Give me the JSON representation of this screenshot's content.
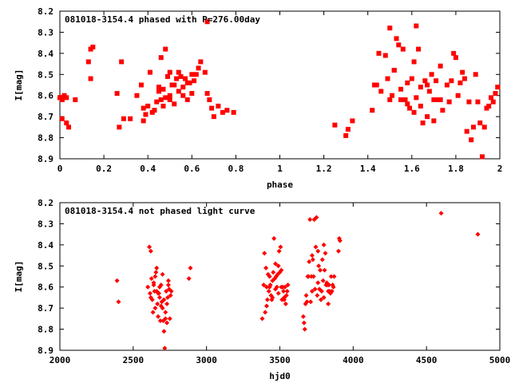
{
  "chart_data": [
    {
      "type": "scatter",
      "title": "081018-3154.4 phased with P=276.00day",
      "xlabel": "phase",
      "ylabel": "I[mag]",
      "xlim": [
        0,
        2
      ],
      "ylim": [
        8.2,
        8.9
      ],
      "y_inverted": true,
      "grid": false,
      "xticks": [
        "0",
        "0.2",
        "0.4",
        "0.6",
        "0.8",
        "1",
        "1.2",
        "1.4",
        "1.6",
        "1.8",
        "2"
      ],
      "xtick_values": [
        0,
        0.2,
        0.4,
        0.6,
        0.8,
        1,
        1.2,
        1.4,
        1.6,
        1.8,
        2
      ],
      "yticks": [
        "8.2",
        "8.3",
        "8.4",
        "8.5",
        "8.6",
        "8.7",
        "8.8",
        "8.9"
      ],
      "ytick_values": [
        8.2,
        8.3,
        8.4,
        8.5,
        8.6,
        8.7,
        8.8,
        8.9
      ],
      "marker": "filled-square",
      "color": "#ff0000",
      "series": [
        {
          "x": [
            0.0,
            0.01,
            0.02,
            0.03,
            0.01,
            0.03,
            0.07,
            0.13,
            0.14,
            0.15,
            0.14,
            0.26,
            0.27,
            0.28,
            0.29,
            0.32,
            0.35,
            0.37,
            0.38,
            0.39,
            0.4,
            0.41,
            0.43,
            0.45,
            0.46,
            0.47,
            0.48,
            0.49,
            0.5,
            0.5,
            0.51,
            0.52,
            0.53,
            0.54,
            0.55,
            0.56,
            0.57,
            0.58,
            0.59,
            0.6,
            0.61,
            0.62,
            0.63,
            0.64,
            0.66,
            0.67,
            0.68,
            0.69,
            0.7,
            0.72,
            0.74,
            0.76,
            0.79,
            0.45,
            0.46,
            0.47,
            0.48,
            0.52,
            0.54,
            0.56,
            0.58,
            0.6,
            0.38,
            0.42,
            0.44,
            0.5,
            0.67,
            0.0,
            0.01,
            0.04
          ],
          "y": [
            8.61,
            8.62,
            8.6,
            8.61,
            8.71,
            8.73,
            8.62,
            8.44,
            8.38,
            8.37,
            8.52,
            8.59,
            8.75,
            8.44,
            8.71,
            8.71,
            8.6,
            8.55,
            8.72,
            8.69,
            8.65,
            8.49,
            8.67,
            8.56,
            8.42,
            8.57,
            8.38,
            8.51,
            8.49,
            8.62,
            8.55,
            8.55,
            8.52,
            8.49,
            8.51,
            8.56,
            8.52,
            8.54,
            8.54,
            8.5,
            8.53,
            8.5,
            8.47,
            8.44,
            8.49,
            8.59,
            8.62,
            8.66,
            8.7,
            8.65,
            8.68,
            8.67,
            8.68,
            8.58,
            8.62,
            8.65,
            8.61,
            8.64,
            8.58,
            8.6,
            8.62,
            8.59,
            8.66,
            8.68,
            8.63,
            8.6,
            8.25,
            8.61,
            8.62,
            8.75
          ]
        },
        {
          "x": [
            1.25,
            1.3,
            1.31,
            1.33,
            1.42,
            1.43,
            1.44,
            1.45,
            1.46,
            1.48,
            1.49,
            1.5,
            1.5,
            1.51,
            1.52,
            1.53,
            1.54,
            1.55,
            1.56,
            1.57,
            1.58,
            1.59,
            1.6,
            1.61,
            1.62,
            1.62,
            1.63,
            1.64,
            1.65,
            1.66,
            1.67,
            1.68,
            1.69,
            1.7,
            1.71,
            1.72,
            1.73,
            1.74,
            1.76,
            1.77,
            1.78,
            1.79,
            1.8,
            1.81,
            1.82,
            1.83,
            1.84,
            1.85,
            1.86,
            1.87,
            1.88,
            1.89,
            1.9,
            1.91,
            1.92,
            1.93,
            1.94,
            1.95,
            1.96,
            1.97,
            1.98,
            1.99,
            1.52,
            1.55,
            1.58,
            1.61,
            1.64,
            1.67,
            1.7,
            1.73
          ],
          "y": [
            8.74,
            8.79,
            8.76,
            8.72,
            8.67,
            8.55,
            8.55,
            8.4,
            8.58,
            8.41,
            8.52,
            8.28,
            8.62,
            8.6,
            8.48,
            8.33,
            8.36,
            8.57,
            8.38,
            8.62,
            8.54,
            8.66,
            8.52,
            8.44,
            8.27,
            8.61,
            8.38,
            8.56,
            8.73,
            8.53,
            8.55,
            8.58,
            8.5,
            8.62,
            8.53,
            8.62,
            8.62,
            8.67,
            8.55,
            8.63,
            8.53,
            8.4,
            8.42,
            8.6,
            8.54,
            8.49,
            8.52,
            8.77,
            8.63,
            8.81,
            8.75,
            8.5,
            8.63,
            8.73,
            8.89,
            8.75,
            8.66,
            8.65,
            8.61,
            8.63,
            8.59,
            8.56,
            8.48,
            8.62,
            8.64,
            8.68,
            8.65,
            8.7,
            8.72,
            8.46
          ]
        }
      ]
    },
    {
      "type": "scatter",
      "title": "081018-3154.4 not phased light curve",
      "xlabel": "hjd0",
      "ylabel": "I[mag]",
      "xlim": [
        2000,
        5000
      ],
      "ylim": [
        8.2,
        8.9
      ],
      "y_inverted": true,
      "grid": false,
      "xticks": [
        "2000",
        "2500",
        "3000",
        "3500",
        "4000",
        "4500",
        "5000"
      ],
      "xtick_values": [
        2000,
        2500,
        3000,
        3500,
        4000,
        4500,
        5000
      ],
      "yticks": [
        "8.2",
        "8.3",
        "8.4",
        "8.5",
        "8.6",
        "8.7",
        "8.8",
        "8.9"
      ],
      "ytick_values": [
        8.2,
        8.3,
        8.4,
        8.5,
        8.6,
        8.7,
        8.8,
        8.9
      ],
      "marker": "diamond",
      "color": "#ff0000",
      "series": [
        {
          "x": [
            2390,
            2400,
            2600,
            2610,
            2615,
            2620,
            2625,
            2630,
            2635,
            2640,
            2645,
            2650,
            2655,
            2660,
            2665,
            2670,
            2675,
            2680,
            2685,
            2690,
            2695,
            2700,
            2705,
            2710,
            2715,
            2720,
            2725,
            2730,
            2735,
            2740,
            2745,
            2750,
            2755,
            2760,
            2880,
            2890,
            2620,
            2640,
            2660,
            2680,
            2700,
            2720,
            2730,
            2740,
            2650,
            2670,
            2690,
            2710
          ],
          "y": [
            8.57,
            8.67,
            8.6,
            8.41,
            8.63,
            8.43,
            8.56,
            8.66,
            8.72,
            8.59,
            8.62,
            8.55,
            8.53,
            8.51,
            8.68,
            8.74,
            8.63,
            8.65,
            8.76,
            8.59,
            8.67,
            8.7,
            8.76,
            8.81,
            8.89,
            8.75,
            8.62,
            8.77,
            8.65,
            8.59,
            8.61,
            8.75,
            8.64,
            8.62,
            8.56,
            8.51,
            8.65,
            8.58,
            8.62,
            8.6,
            8.54,
            8.72,
            8.68,
            8.57,
            8.7,
            8.63,
            8.69,
            8.66
          ]
        },
        {
          "x": [
            3380,
            3390,
            3395,
            3400,
            3405,
            3410,
            3415,
            3420,
            3425,
            3430,
            3435,
            3440,
            3445,
            3450,
            3455,
            3460,
            3465,
            3470,
            3475,
            3480,
            3485,
            3490,
            3495,
            3500,
            3505,
            3510,
            3515,
            3520,
            3525,
            3530,
            3535,
            3540,
            3545,
            3550,
            3555,
            3410,
            3430,
            3450,
            3470,
            3490,
            3510,
            3530
          ],
          "y": [
            8.75,
            8.59,
            8.44,
            8.72,
            8.51,
            8.6,
            8.66,
            8.54,
            8.62,
            8.6,
            8.59,
            8.64,
            8.66,
            8.65,
            8.53,
            8.37,
            8.56,
            8.49,
            8.55,
            8.6,
            8.54,
            8.5,
            8.43,
            8.53,
            8.41,
            8.6,
            8.66,
            8.6,
            8.62,
            8.66,
            8.6,
            8.68,
            8.64,
            8.62,
            8.59,
            8.69,
            8.55,
            8.57,
            8.61,
            8.63,
            8.52,
            8.65
          ]
        },
        {
          "x": [
            3660,
            3665,
            3670,
            3675,
            3680,
            3685,
            3690,
            3695,
            3700,
            3705,
            3710,
            3715,
            3720,
            3725,
            3730,
            3735,
            3740,
            3745,
            3750,
            3755,
            3760,
            3765,
            3770,
            3775,
            3780,
            3785,
            3790,
            3795,
            3800,
            3805,
            3810,
            3815,
            3820,
            3825,
            3830,
            3835,
            3840,
            3845,
            3850,
            3855,
            3860,
            3865,
            3870,
            3900,
            3905,
            3910,
            3720,
            3760,
            3800,
            3830
          ],
          "y": [
            8.74,
            8.77,
            8.8,
            8.68,
            8.64,
            8.67,
            8.55,
            8.55,
            8.48,
            8.28,
            8.67,
            8.55,
            8.62,
            8.47,
            8.55,
            8.28,
            8.61,
            8.41,
            8.27,
            8.64,
            8.43,
            8.5,
            8.61,
            8.52,
            8.66,
            8.62,
            8.47,
            8.57,
            8.4,
            8.52,
            8.44,
            8.59,
            8.58,
            8.59,
            8.62,
            8.59,
            8.62,
            8.63,
            8.55,
            8.62,
            8.59,
            8.6,
            8.55,
            8.43,
            8.37,
            8.38,
            8.45,
            8.58,
            8.65,
            8.68
          ]
        },
        {
          "x": [
            4600,
            4850
          ],
          "y": [
            8.25,
            8.35
          ]
        }
      ]
    }
  ]
}
